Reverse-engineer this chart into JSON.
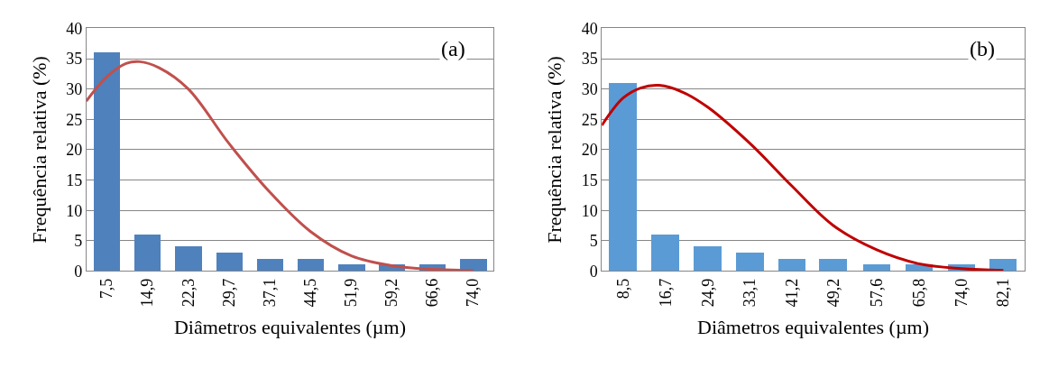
{
  "chart_data": [
    {
      "type": "bar",
      "ylabel": "Frequência relativa (%)",
      "xlabel": "Diâmetros equivalentes (µm)",
      "annotations": [
        "(a)"
      ],
      "x": [
        7.5,
        14.9,
        22.3,
        29.7,
        37.1,
        44.5,
        51.9,
        59.2,
        66.6,
        74.0
      ],
      "xlim": [
        3.8,
        77.7
      ],
      "xticks": [
        {
          "value": 7.5,
          "label": "7,5"
        },
        {
          "value": 14.9,
          "label": "14,9"
        },
        {
          "value": 22.3,
          "label": "22,3"
        },
        {
          "value": 29.7,
          "label": "29,7"
        },
        {
          "value": 37.1,
          "label": "37,1"
        },
        {
          "value": 44.5,
          "label": "44,5"
        },
        {
          "value": 51.9,
          "label": "51,9"
        },
        {
          "value": 59.2,
          "label": "59,2"
        },
        {
          "value": 66.6,
          "label": "66,6"
        },
        {
          "value": 74.0,
          "label": "74,0"
        }
      ],
      "ylim": [
        0,
        40
      ],
      "yticks": [
        0,
        5,
        10,
        15,
        20,
        25,
        30,
        35,
        40
      ],
      "grid": "y",
      "series": [
        {
          "color": "#4f81bd",
          "values": [
            36,
            6,
            4,
            3,
            2,
            2,
            1,
            1,
            1,
            2
          ]
        },
        {
          "type": "line",
          "color": "#c0504d",
          "x": [
            3.8,
            7.5,
            11,
            13.5,
            17,
            22.3,
            29.7,
            37.1,
            44.5,
            51.9,
            59.2,
            66.6,
            74.0
          ],
          "values": [
            28,
            32,
            34.2,
            34.5,
            33.5,
            30,
            21,
            13,
            6.5,
            2.5,
            0.9,
            0.3,
            0.1
          ]
        }
      ]
    },
    {
      "type": "bar",
      "ylabel": "Frequência relativa (%)",
      "xlabel": "Diâmetros equivalentes (µm)",
      "annotations": [
        "(b)"
      ],
      "x": [
        8.5,
        16.7,
        24.9,
        33.1,
        41.2,
        49.2,
        57.6,
        65.8,
        74.0,
        82.1
      ],
      "xlim": [
        4.4,
        86.2
      ],
      "xticks": [
        {
          "value": 8.5,
          "label": "8,5"
        },
        {
          "value": 16.7,
          "label": "16,7"
        },
        {
          "value": 24.9,
          "label": "24,9"
        },
        {
          "value": 33.1,
          "label": "33,1"
        },
        {
          "value": 41.2,
          "label": "41,2"
        },
        {
          "value": 49.2,
          "label": "49,2"
        },
        {
          "value": 57.6,
          "label": "57,6"
        },
        {
          "value": 65.8,
          "label": "65,8"
        },
        {
          "value": 74.0,
          "label": "74,0"
        },
        {
          "value": 82.1,
          "label": "82,1"
        }
      ],
      "ylim": [
        0,
        40
      ],
      "yticks": [
        0,
        5,
        10,
        15,
        20,
        25,
        30,
        35,
        40
      ],
      "grid": "y",
      "series": [
        {
          "color": "#5b9bd5",
          "values": [
            31,
            6,
            4,
            3,
            2,
            2,
            1,
            1,
            1,
            2
          ]
        },
        {
          "type": "line",
          "color": "#c00000",
          "x": [
            4.4,
            8.5,
            12,
            15.5,
            20,
            24.9,
            33.1,
            41.2,
            49.2,
            57.6,
            65.8,
            74.0,
            82.1
          ],
          "values": [
            24,
            28.5,
            30.2,
            30.6,
            29.5,
            27,
            21,
            14,
            7.5,
            3.5,
            1.2,
            0.4,
            0.1
          ]
        }
      ]
    }
  ]
}
